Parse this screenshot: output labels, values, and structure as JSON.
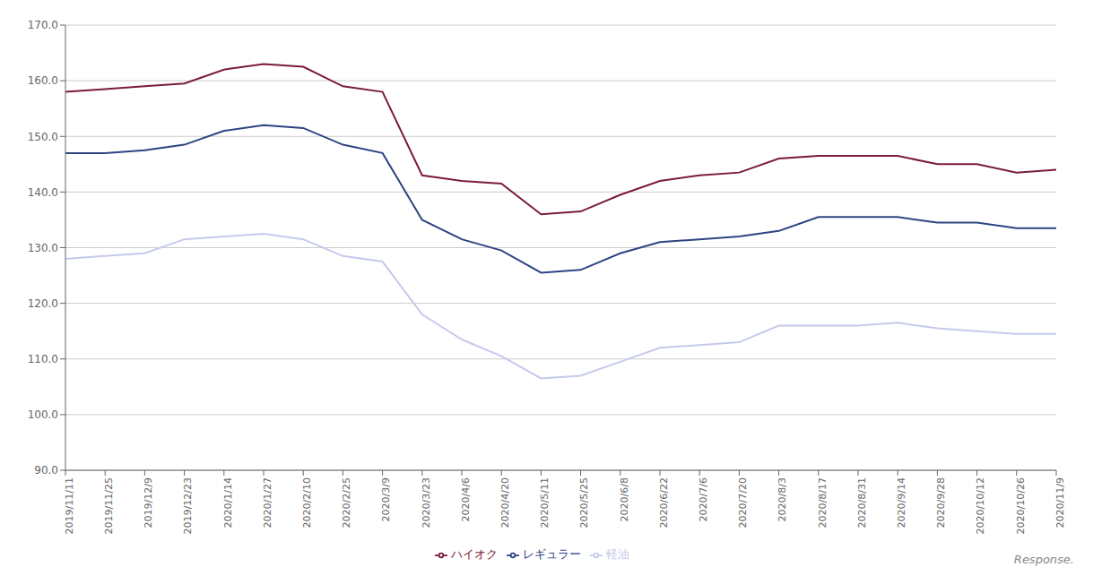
{
  "chart_data": {
    "type": "line",
    "categories": [
      "2019/11/11",
      "2019/11/25",
      "2019/12/9",
      "2019/12/23",
      "2020/1/14",
      "2020/1/27",
      "2020/2/10",
      "2020/2/25",
      "2020/3/9",
      "2020/3/23",
      "2020/4/6",
      "2020/4/20",
      "2020/5/11",
      "2020/5/25",
      "2020/6/8",
      "2020/6/22",
      "2020/7/6",
      "2020/7/20",
      "2020/8/3",
      "2020/8/17",
      "2020/8/31",
      "2020/9/14",
      "2020/9/28",
      "2020/10/12",
      "2020/10/26",
      "2020/11/9"
    ],
    "series": [
      {
        "name": "レギュラー",
        "color": "#2E4482",
        "values": [
          147.0,
          147.0,
          147.5,
          148.5,
          151.0,
          152.0,
          151.5,
          148.5,
          147.0,
          135.0,
          131.5,
          129.5,
          125.5,
          126.0,
          129.0,
          131.0,
          131.5,
          132.0,
          133.0,
          135.5,
          135.5,
          135.5,
          134.5,
          134.5,
          133.5,
          133.5
        ]
      },
      {
        "name": "ハイオク",
        "color": "#7B1B3A",
        "values": [
          158.0,
          158.5,
          159.0,
          159.5,
          162.0,
          163.0,
          162.5,
          159.0,
          158.0,
          143.0,
          142.0,
          141.5,
          136.0,
          136.5,
          139.5,
          142.0,
          143.0,
          143.5,
          146.0,
          146.5,
          146.5,
          146.5,
          145.0,
          145.0,
          143.5,
          144.0
        ]
      },
      {
        "name": "軽油",
        "color": "#C5CAEB",
        "values": [
          128.0,
          128.5,
          129.0,
          131.5,
          132.0,
          132.5,
          131.5,
          128.5,
          127.5,
          118.0,
          113.5,
          110.5,
          106.5,
          107.0,
          109.5,
          112.0,
          112.5,
          113.0,
          116.0,
          116.0,
          116.0,
          116.5,
          115.5,
          115.0,
          114.5,
          114.5
        ]
      }
    ],
    "ylim": [
      90.0,
      170.0
    ],
    "yticks": [
      {
        "value": 90.0,
        "label": "90.0"
      },
      {
        "value": 100.0,
        "label": "100.0"
      },
      {
        "value": 110.0,
        "label": "110.0"
      },
      {
        "value": 120.0,
        "label": "120.0"
      },
      {
        "value": 130.0,
        "label": "130.0"
      },
      {
        "value": 140.0,
        "label": "140.0"
      },
      {
        "value": 150.0,
        "label": "150.0"
      },
      {
        "value": 160.0,
        "label": "160.0"
      },
      {
        "value": 170.0,
        "label": "170.0"
      }
    ],
    "grid": "y",
    "legend": "bottom",
    "annotations": [
      "Response."
    ]
  }
}
